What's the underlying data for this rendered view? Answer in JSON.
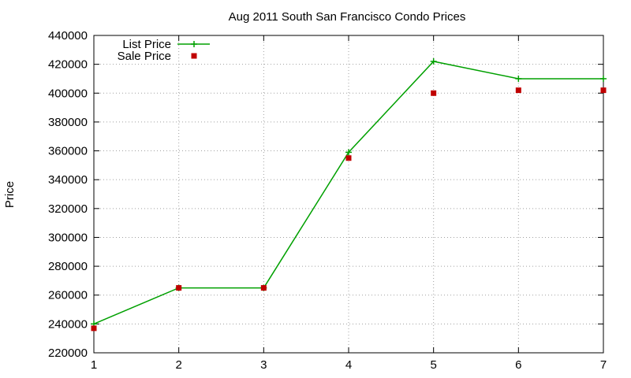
{
  "chart_data": {
    "type": "line",
    "title": "Aug 2011 South San Francisco Condo Prices",
    "xlabel": "",
    "ylabel": "Price",
    "xlim": [
      1,
      7
    ],
    "ylim": [
      220000,
      440000
    ],
    "xticks": [
      1,
      2,
      3,
      4,
      5,
      6,
      7
    ],
    "xtick_labels": [
      "1",
      "2",
      "3",
      "4",
      "5",
      "6",
      "7"
    ],
    "yticks": [
      220000,
      240000,
      260000,
      280000,
      300000,
      320000,
      340000,
      360000,
      380000,
      400000,
      420000,
      440000
    ],
    "ytick_labels": [
      "220000",
      "240000",
      "260000",
      "280000",
      "300000",
      "320000",
      "340000",
      "360000",
      "380000",
      "400000",
      "420000",
      "440000"
    ],
    "grid": true,
    "legend_position": "top-left",
    "series": [
      {
        "name": "List Price",
        "style": "line-with-plus-markers",
        "color": "#00a000",
        "x": [
          1,
          2,
          3,
          4,
          5,
          6,
          7
        ],
        "y": [
          240000,
          265000,
          265000,
          359000,
          422000,
          410000,
          410000
        ]
      },
      {
        "name": "Sale Price",
        "style": "square-markers",
        "color": "#c00000",
        "x": [
          1,
          2,
          3,
          4,
          5,
          6,
          7
        ],
        "y": [
          237000,
          265000,
          265000,
          355000,
          400000,
          402000,
          402000
        ]
      }
    ]
  }
}
